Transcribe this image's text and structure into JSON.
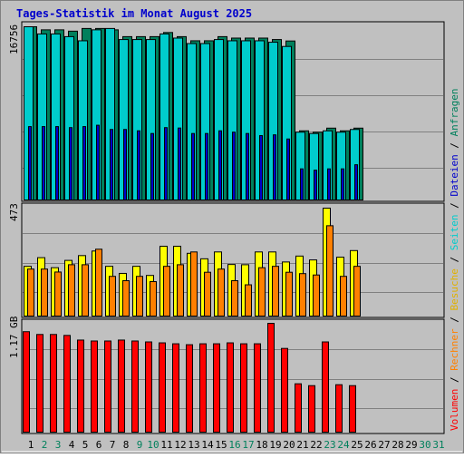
{
  "title": "Tages-Statistik im Monat August 2025",
  "colors": {
    "background": "#C0C0C0",
    "frame_dark": "#808080",
    "title": "#0000CC",
    "tick_weekday": "#000000",
    "tick_weekend": "#00805C",
    "grid": "#808080",
    "anfragen": "#00805C",
    "dateien": "#0000CC",
    "seiten": "#00CCCC",
    "besuche": "#FFFF00",
    "rechner": "#FF8000",
    "volumen": "#FF0000"
  },
  "legend": {
    "anfragen": "Anfragen",
    "dateien": "Dateien",
    "seiten": "Seiten",
    "besuche": "Besuche",
    "rechner": "Rechner",
    "volumen": "Volumen",
    "sep": "/"
  },
  "chart_data": [
    {
      "type": "bar",
      "panel": "top",
      "max_label": "16756",
      "ylim": [
        0,
        16756
      ],
      "categories": [
        "1",
        "2",
        "3",
        "4",
        "5",
        "6",
        "7",
        "8",
        "9",
        "10",
        "11",
        "12",
        "13",
        "14",
        "15",
        "16",
        "17",
        "18",
        "19",
        "20",
        "21",
        "22",
        "23",
        "24",
        "25",
        "26",
        "27",
        "28",
        "29",
        "30",
        "31"
      ],
      "weekend": [
        "2",
        "3",
        "9",
        "10",
        "16",
        "17",
        "23",
        "24",
        "30",
        "31"
      ],
      "series": [
        {
          "name": "Anfragen",
          "values": [
            16756,
            16460,
            16460,
            16330,
            16590,
            16590,
            16460,
            15800,
            15800,
            15800,
            16200,
            15800,
            15400,
            15400,
            15800,
            15660,
            15660,
            15660,
            15520,
            15380,
            6690,
            6560,
            6950,
            6690,
            6950,
            0,
            0,
            0,
            0,
            0,
            0
          ]
        },
        {
          "name": "Seiten",
          "values": [
            16756,
            16060,
            16060,
            15800,
            15400,
            16460,
            16590,
            15520,
            15520,
            15520,
            16060,
            15660,
            15130,
            15130,
            15520,
            15400,
            15400,
            15400,
            15260,
            14850,
            6560,
            6430,
            6690,
            6560,
            6820,
            0,
            0,
            0,
            0,
            0,
            0
          ]
        },
        {
          "name": "Dateien",
          "values": [
            7100,
            7100,
            7100,
            7000,
            7100,
            7230,
            6820,
            6820,
            6690,
            6430,
            7000,
            6960,
            6430,
            6430,
            6690,
            6560,
            6430,
            6230,
            6300,
            5900,
            3010,
            2880,
            3010,
            3010,
            3410,
            0,
            0,
            0,
            0,
            0,
            0
          ]
        }
      ]
    },
    {
      "type": "bar",
      "panel": "middle",
      "max_label": "473",
      "ylim": [
        0,
        473
      ],
      "series": [
        {
          "name": "Besuche",
          "values": [
            218,
            256,
            212,
            244,
            265,
            285,
            218,
            187,
            218,
            178,
            306,
            306,
            275,
            251,
            281,
            226,
            225,
            281,
            281,
            237,
            263,
            246,
            473,
            258,
            287,
            0,
            0,
            0,
            0,
            0,
            0
          ]
        },
        {
          "name": "Rechner",
          "values": [
            206,
            206,
            193,
            225,
            225,
            293,
            174,
            155,
            174,
            151,
            218,
            225,
            281,
            192,
            206,
            155,
            137,
            212,
            218,
            192,
            186,
            180,
            396,
            174,
            218,
            0,
            0,
            0,
            0,
            0,
            0
          ]
        }
      ]
    },
    {
      "type": "bar",
      "panel": "bottom",
      "max_label": "1.17 GB",
      "ylim": [
        0,
        1.17
      ],
      "series": [
        {
          "name": "Volumen",
          "values": [
            1.08,
            1.05,
            1.05,
            1.04,
            0.99,
            0.98,
            0.98,
            0.99,
            0.98,
            0.97,
            0.96,
            0.95,
            0.94,
            0.95,
            0.95,
            0.96,
            0.95,
            0.95,
            1.17,
            0.9,
            0.52,
            0.5,
            0.97,
            0.51,
            0.5,
            0,
            0,
            0,
            0,
            0,
            0
          ]
        }
      ]
    }
  ]
}
